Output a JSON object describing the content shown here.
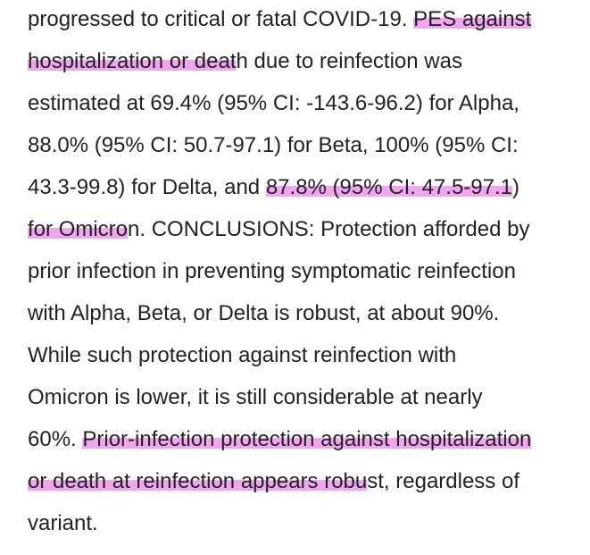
{
  "document": {
    "lines": [
      {
        "segments": [
          {
            "text": "progressed to critical or fatal COVID-19. ",
            "highlight": false
          },
          {
            "text": "PES against",
            "highlight": true
          }
        ]
      },
      {
        "segments": [
          {
            "text": "hospitalization or deat",
            "highlight": true
          },
          {
            "text": "h due to reinfection was",
            "highlight": false
          }
        ]
      },
      {
        "segments": [
          {
            "text": "estimated at 69.4% (95% CI: -143.6-96.2) for Alpha,",
            "highlight": false
          }
        ]
      },
      {
        "segments": [
          {
            "text": "88.0% (95% CI: 50.7-97.1) for Beta, 100% (95% CI:",
            "highlight": false
          }
        ]
      },
      {
        "segments": [
          {
            "text": "43.3-99.8) for Delta, and ",
            "highlight": false
          },
          {
            "text": "87.8% (95% CI: 47.5-97.1",
            "highlight": true
          },
          {
            "text": ")",
            "highlight": false
          }
        ]
      },
      {
        "segments": [
          {
            "text": "for Omicro",
            "highlight": true
          },
          {
            "text": "n. CONCLUSIONS: Protection afforded by",
            "highlight": false
          }
        ]
      },
      {
        "segments": [
          {
            "text": "prior infection in preventing symptomatic reinfection",
            "highlight": false
          }
        ]
      },
      {
        "segments": [
          {
            "text": "with Alpha, Beta, or Delta is robust, at about 90%.",
            "highlight": false
          }
        ]
      },
      {
        "segments": [
          {
            "text": "While such protection against reinfection with",
            "highlight": false
          }
        ]
      },
      {
        "segments": [
          {
            "text": "Omicron is lower, it is still considerable at nearly",
            "highlight": false
          }
        ]
      },
      {
        "segments": [
          {
            "text": "60%. ",
            "highlight": false
          },
          {
            "text": "Prior-infection protection against hospitalization",
            "highlight": true
          }
        ]
      },
      {
        "segments": [
          {
            "text": "or death at reinfection appears robu",
            "highlight": true
          },
          {
            "text": "st, regardless of",
            "highlight": false
          }
        ]
      },
      {
        "segments": [
          {
            "text": "variant.",
            "highlight": false
          }
        ]
      }
    ],
    "highlight_color": "#f0a6ee",
    "text_color": "#222222",
    "background_color": "#ffffff"
  }
}
